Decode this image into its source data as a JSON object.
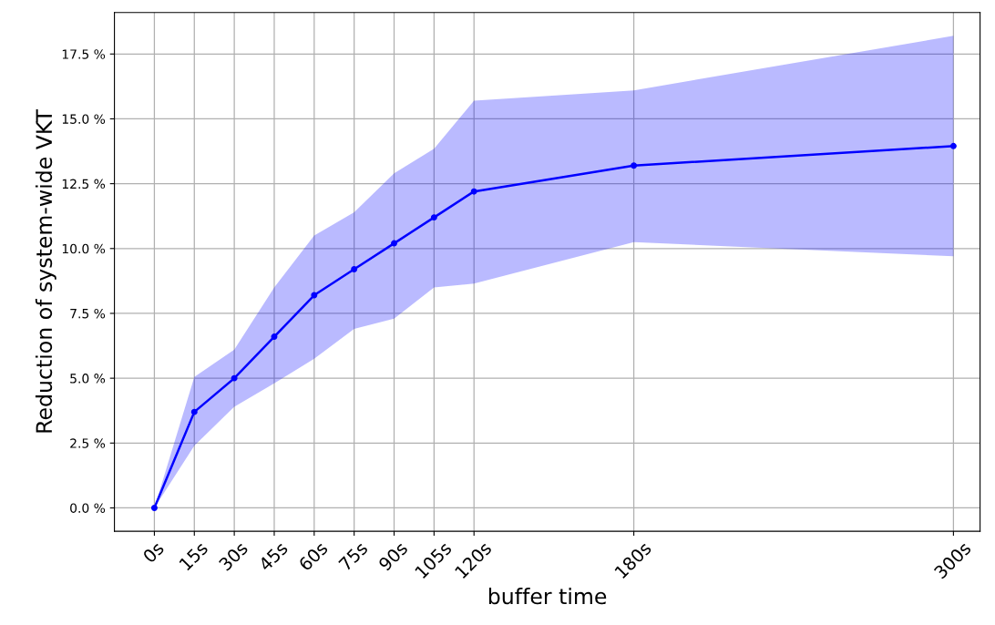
{
  "chart_data": {
    "type": "line",
    "xlabel": "buffer time",
    "ylabel": "Reduction of system-wide VKT",
    "x": [
      0,
      15,
      30,
      45,
      60,
      75,
      90,
      105,
      120,
      180,
      300
    ],
    "series": [
      {
        "color": "#0000ff",
        "values": [
          0,
          3.7,
          5.0,
          6.6,
          8.2,
          9.2,
          10.2,
          11.2,
          12.2,
          13.2,
          13.95
        ],
        "lower": [
          0,
          2.4,
          3.9,
          4.8,
          5.75,
          6.9,
          7.3,
          8.5,
          8.65,
          10.25,
          9.7
        ],
        "upper": [
          0,
          5.05,
          6.1,
          8.5,
          10.5,
          11.4,
          12.9,
          13.85,
          15.7,
          16.1,
          18.2
        ]
      }
    ],
    "xlim": [
      -15,
      310
    ],
    "ylim": [
      -0.9,
      19.1
    ],
    "xticks": [
      {
        "value": 0,
        "label": "0s"
      },
      {
        "value": 15,
        "label": "15s"
      },
      {
        "value": 30,
        "label": "30s"
      },
      {
        "value": 45,
        "label": "45s"
      },
      {
        "value": 60,
        "label": "60s"
      },
      {
        "value": 75,
        "label": "75s"
      },
      {
        "value": 90,
        "label": "90s"
      },
      {
        "value": 105,
        "label": "105s"
      },
      {
        "value": 120,
        "label": "120s"
      },
      {
        "value": 180,
        "label": "180s"
      },
      {
        "value": 300,
        "label": "300s"
      }
    ],
    "yticks": [
      {
        "value": 0,
        "label": "0.0 %"
      },
      {
        "value": 2.5,
        "label": "2.5 %"
      },
      {
        "value": 5,
        "label": "5.0 %"
      },
      {
        "value": 7.5,
        "label": "7.5 %"
      },
      {
        "value": 10,
        "label": "10.0 %"
      },
      {
        "value": 12.5,
        "label": "12.5 %"
      },
      {
        "value": 15,
        "label": "15.0 %"
      },
      {
        "value": 17.5,
        "label": "17.5 %"
      }
    ],
    "grid": true,
    "marker": "circle",
    "line_style": "solid"
  }
}
